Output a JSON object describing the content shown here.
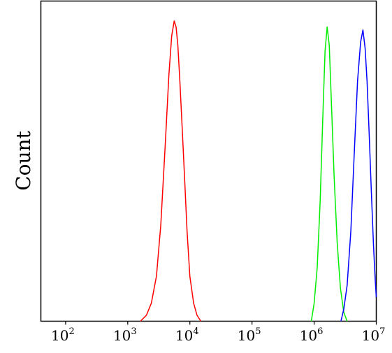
{
  "chart_data": {
    "type": "line",
    "title": "",
    "xlabel": "",
    "ylabel": "Count",
    "x_scale": "log",
    "xlim": [
      40,
      10000000
    ],
    "ylim": [
      0,
      100
    ],
    "grid": false,
    "legend": "none",
    "x_ticks": [
      {
        "base": "10",
        "exp": "2",
        "value": 100
      },
      {
        "base": "10",
        "exp": "3",
        "value": 1000
      },
      {
        "base": "10",
        "exp": "4",
        "value": 10000
      },
      {
        "base": "10",
        "exp": "5",
        "value": 100000
      },
      {
        "base": "10",
        "exp": "6",
        "value": 1000000
      },
      {
        "base": "10",
        "exp": "7",
        "value": 10000000
      }
    ],
    "series": [
      {
        "color": "#ff0000",
        "x": [
          1600,
          2000,
          2400,
          2900,
          3400,
          4000,
          4600,
          5100,
          5600,
          6000,
          6400,
          6900,
          7500,
          8200,
          9000,
          10000,
          11500,
          13000,
          15000
        ],
        "y": [
          0,
          2,
          6,
          15,
          32,
          58,
          82,
          95,
          100,
          98,
          92,
          80,
          65,
          48,
          30,
          15,
          6,
          2,
          0
        ]
      },
      {
        "color": "#00ee00",
        "x": [
          900000,
          1000000,
          1120000,
          1250000,
          1380000,
          1500000,
          1620000,
          1750000,
          1900000,
          2100000,
          2350000,
          2650000,
          3000000,
          3400000
        ],
        "y": [
          0,
          6,
          18,
          40,
          68,
          90,
          98,
          92,
          72,
          48,
          26,
          11,
          3,
          0
        ]
      },
      {
        "color": "#0000ff",
        "x": [
          2700000,
          3000000,
          3400000,
          3900000,
          4400000,
          5000000,
          5600000,
          6100000,
          6600000,
          7100000,
          7700000,
          8300000,
          9000000,
          9600000,
          10000000
        ],
        "y": [
          0,
          4,
          12,
          30,
          55,
          80,
          93,
          97,
          91,
          80,
          62,
          44,
          26,
          14,
          8
        ]
      }
    ]
  }
}
